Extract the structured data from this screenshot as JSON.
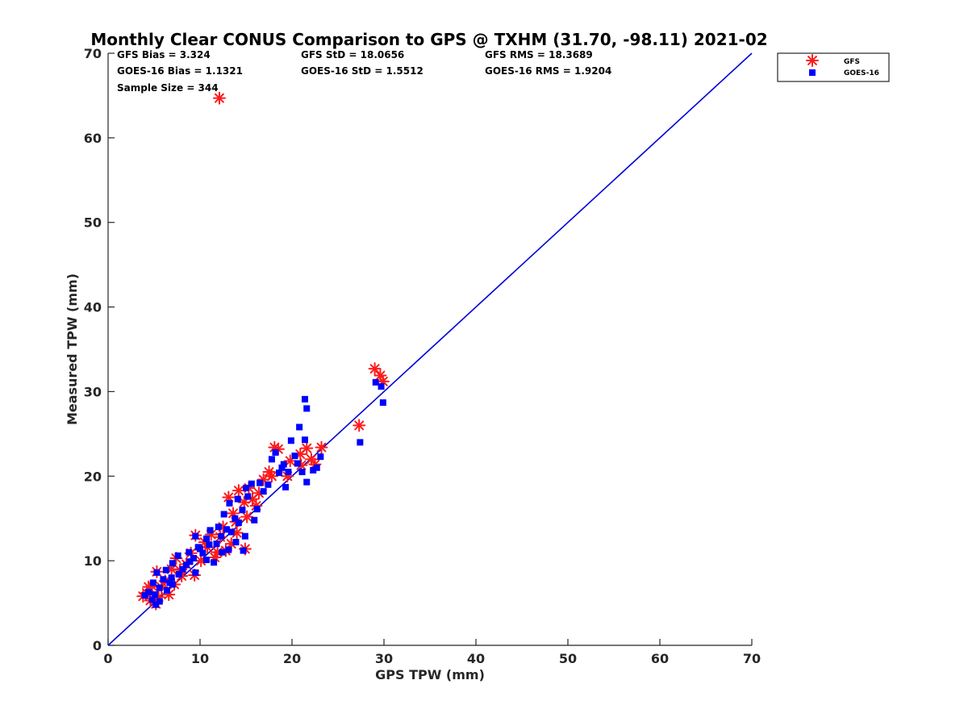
{
  "chart_data": {
    "type": "scatter",
    "title": "Monthly Clear CONUS Comparison to GPS @ TXHM (31.70, -98.11) 2021-02",
    "xlabel": "GPS TPW (mm)",
    "ylabel": "Measured TPW (mm)",
    "xlim": [
      0,
      70
    ],
    "ylim": [
      0,
      70
    ],
    "xticks": [
      "0",
      "10",
      "20",
      "30",
      "40",
      "50",
      "60",
      "70"
    ],
    "yticks": [
      "0",
      "10",
      "20",
      "30",
      "40",
      "50",
      "60",
      "70"
    ],
    "grid": false,
    "legend_position": "top-right",
    "reference_line": {
      "from": [
        0,
        0
      ],
      "to": [
        70,
        70
      ],
      "color": "#0000d9"
    },
    "stats": {
      "gfs_bias": "GFS Bias = 3.324",
      "gfs_std": "GFS StD = 18.0656",
      "gfs_rms": "GFS RMS = 18.3689",
      "goes_bias": "GOES-16 Bias = 1.1321",
      "goes_std": "GOES-16 StD = 1.5512",
      "goes_rms": "GOES-16 RMS = 1.9204",
      "sample_size": "Sample Size = 344"
    },
    "series": [
      {
        "name": "GFS",
        "marker": "asterisk",
        "color": "#ff1a1a",
        "points": [
          [
            12.1,
            64.7
          ],
          [
            29.0,
            32.7
          ],
          [
            29.6,
            31.9
          ],
          [
            29.9,
            31.2
          ],
          [
            27.3,
            26.0
          ],
          [
            23.2,
            23.4
          ],
          [
            21.6,
            23.3
          ],
          [
            18.1,
            23.4
          ],
          [
            18.5,
            23.2
          ],
          [
            20.9,
            22.6
          ],
          [
            22.1,
            22.0
          ],
          [
            19.5,
            20.0
          ],
          [
            17.5,
            20.5
          ],
          [
            16.9,
            19.6
          ],
          [
            15.3,
            18.6
          ],
          [
            14.2,
            18.3
          ],
          [
            13.1,
            17.5
          ],
          [
            14.8,
            16.9
          ],
          [
            16.1,
            16.5
          ],
          [
            13.6,
            15.6
          ],
          [
            15.1,
            15.2
          ],
          [
            12.5,
            14.0
          ],
          [
            14.0,
            13.3
          ],
          [
            11.2,
            13.1
          ],
          [
            9.5,
            13.0
          ],
          [
            10.5,
            12.2
          ],
          [
            13.4,
            12.0
          ],
          [
            14.9,
            11.4
          ],
          [
            12.8,
            11.2
          ],
          [
            11.6,
            10.4
          ],
          [
            9.0,
            10.9
          ],
          [
            7.4,
            10.3
          ],
          [
            10.1,
            10.0
          ],
          [
            8.5,
            9.6
          ],
          [
            6.9,
            9.0
          ],
          [
            9.4,
            8.3
          ],
          [
            8.0,
            8.2
          ],
          [
            5.3,
            8.7
          ],
          [
            6.2,
            7.6
          ],
          [
            4.8,
            7.0
          ],
          [
            5.8,
            6.9
          ],
          [
            7.2,
            7.2
          ],
          [
            4.2,
            6.2
          ],
          [
            3.8,
            5.8
          ],
          [
            5.5,
            5.7
          ],
          [
            4.6,
            5.3
          ],
          [
            6.6,
            6.0
          ],
          [
            5.2,
            4.9
          ],
          [
            4.4,
            6.9
          ],
          [
            7.8,
            8.9
          ],
          [
            10.8,
            11.6
          ],
          [
            12.2,
            12.8
          ],
          [
            13.9,
            14.6
          ],
          [
            15.7,
            17.3
          ],
          [
            17.8,
            20.0
          ],
          [
            19.8,
            21.8
          ],
          [
            21.0,
            21.3
          ],
          [
            22.5,
            21.4
          ],
          [
            16.4,
            18.0
          ],
          [
            11.9,
            11.0
          ]
        ]
      },
      {
        "name": "GOES-16",
        "marker": "square",
        "color": "#0000ff",
        "points": [
          [
            21.4,
            29.1
          ],
          [
            21.6,
            28.0
          ],
          [
            20.8,
            25.8
          ],
          [
            29.9,
            28.7
          ],
          [
            29.7,
            30.6
          ],
          [
            29.1,
            31.1
          ],
          [
            27.4,
            24.0
          ],
          [
            21.4,
            24.3
          ],
          [
            19.9,
            24.2
          ],
          [
            18.2,
            22.8
          ],
          [
            20.3,
            22.4
          ],
          [
            23.1,
            22.3
          ],
          [
            22.7,
            21.0
          ],
          [
            22.3,
            20.7
          ],
          [
            21.1,
            20.5
          ],
          [
            21.6,
            19.3
          ],
          [
            19.3,
            18.7
          ],
          [
            17.8,
            22.0
          ],
          [
            19.1,
            21.4
          ],
          [
            20.6,
            21.5
          ],
          [
            19.6,
            20.5
          ],
          [
            18.6,
            20.4
          ],
          [
            17.4,
            19.0
          ],
          [
            16.5,
            19.2
          ],
          [
            15.6,
            19.1
          ],
          [
            15.0,
            18.6
          ],
          [
            14.1,
            17.3
          ],
          [
            13.2,
            16.8
          ],
          [
            14.6,
            16.0
          ],
          [
            16.2,
            16.1
          ],
          [
            15.9,
            14.8
          ],
          [
            14.2,
            14.5
          ],
          [
            12.6,
            15.5
          ],
          [
            12.0,
            14.0
          ],
          [
            13.4,
            13.4
          ],
          [
            14.9,
            12.9
          ],
          [
            13.9,
            12.2
          ],
          [
            11.1,
            13.6
          ],
          [
            10.7,
            12.6
          ],
          [
            9.5,
            12.9
          ],
          [
            11.8,
            12.0
          ],
          [
            12.4,
            11.0
          ],
          [
            13.1,
            11.3
          ],
          [
            14.7,
            11.2
          ],
          [
            10.0,
            11.4
          ],
          [
            8.8,
            11.0
          ],
          [
            9.3,
            10.3
          ],
          [
            7.6,
            10.6
          ],
          [
            10.7,
            10.1
          ],
          [
            11.5,
            9.8
          ],
          [
            8.5,
            9.5
          ],
          [
            7.0,
            9.7
          ],
          [
            6.3,
            8.9
          ],
          [
            7.7,
            8.4
          ],
          [
            9.5,
            8.6
          ],
          [
            5.3,
            8.6
          ],
          [
            6.0,
            7.8
          ],
          [
            4.9,
            7.4
          ],
          [
            5.6,
            6.8
          ],
          [
            7.0,
            7.2
          ],
          [
            4.4,
            6.3
          ],
          [
            5.1,
            6.0
          ],
          [
            6.4,
            6.5
          ],
          [
            4.0,
            5.9
          ],
          [
            5.6,
            5.2
          ],
          [
            4.8,
            5.4
          ],
          [
            5.2,
            4.8
          ],
          [
            6.9,
            8.0
          ],
          [
            8.1,
            9.0
          ],
          [
            9.8,
            11.6
          ],
          [
            12.3,
            12.9
          ],
          [
            13.8,
            15.0
          ],
          [
            15.2,
            17.6
          ],
          [
            16.9,
            18.2
          ],
          [
            18.9,
            21.0
          ],
          [
            10.3,
            10.9
          ],
          [
            8.9,
            9.9
          ],
          [
            6.7,
            7.4
          ],
          [
            11.0,
            11.9
          ],
          [
            12.9,
            13.7
          ]
        ]
      }
    ]
  }
}
